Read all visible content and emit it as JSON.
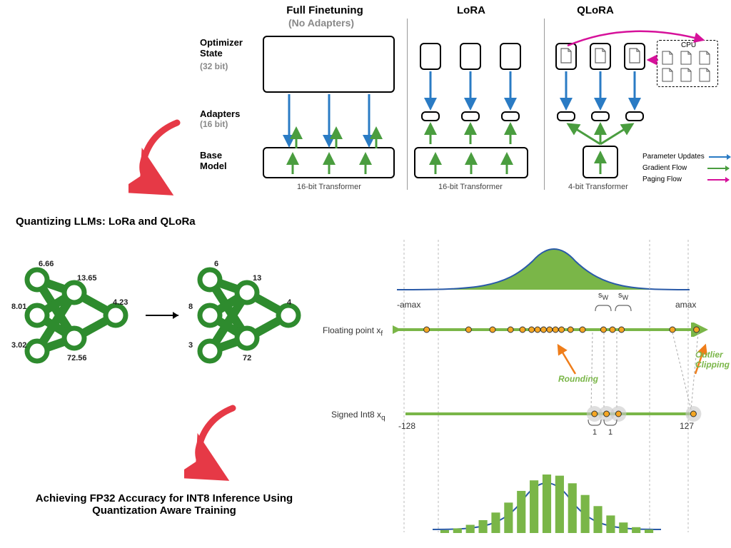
{
  "colors": {
    "green": "#4a9d3f",
    "green_fill": "#7ab648",
    "blue": "#2a7bc4",
    "magenta": "#d6119a",
    "orange": "#ef7d1a",
    "red_arrow": "#e63946",
    "gray": "#888888"
  },
  "top": {
    "col1": {
      "title": "Full Finetuning",
      "subtitle": "(No Adapters)",
      "caption": "16-bit Transformer"
    },
    "col2": {
      "title": "LoRA",
      "caption": "16-bit Transformer"
    },
    "col3": {
      "title": "QLoRA",
      "caption": "4-bit Transformer"
    },
    "rows": {
      "r1": {
        "label": "Optimizer",
        "label2": "State",
        "sub": "(32 bit)"
      },
      "r2": {
        "label": "Adapters",
        "sub": "(16 bit)"
      },
      "r3": {
        "label": "Base",
        "label2": "Model"
      }
    },
    "cpu": {
      "label": "CPU"
    },
    "legend": {
      "l1": "Parameter Updates",
      "l2": "Gradient Flow",
      "l3": "Paging Flow"
    }
  },
  "title1": "Quantizing LLMs: LoRa and QLoRa",
  "title2_line1": "Achieving FP32 Accuracy for INT8 Inference Using",
  "title2_line2": "Quantization Aware Training",
  "nn": {
    "left": {
      "vals": [
        "6.66",
        "13.65",
        "8.01",
        "4.23",
        "3.02",
        "72.56"
      ]
    },
    "right": {
      "vals": [
        "6",
        "13",
        "8",
        "4",
        "3",
        "72"
      ]
    }
  },
  "quant": {
    "amax_neg": "-amax",
    "amax_pos": "amax",
    "sw1": "s",
    "sw1sub": "W",
    "sw2": "s",
    "sw2sub": "W",
    "float_label": "Floating point x",
    "float_sub": "f",
    "int_label": "Signed Int8 x",
    "int_sub": "q",
    "int_min": "-128",
    "int_max": "127",
    "tick1": "1",
    "tick2": "1",
    "rounding": "Rounding",
    "clipping_l1": "Outlier",
    "clipping_l2": "Clipping",
    "float_points": [
      0.08,
      0.22,
      0.3,
      0.36,
      0.4,
      0.43,
      0.45,
      0.47,
      0.49,
      0.51,
      0.53,
      0.56,
      0.6,
      0.67,
      0.7,
      0.73,
      0.9,
      0.98
    ],
    "int_points": [
      0.64,
      0.68,
      0.72,
      0.97
    ],
    "hist_bars": [
      0.05,
      0.08,
      0.14,
      0.22,
      0.35,
      0.52,
      0.72,
      0.9,
      1.0,
      0.98,
      0.85,
      0.65,
      0.46,
      0.3,
      0.18,
      0.1,
      0.06
    ]
  }
}
